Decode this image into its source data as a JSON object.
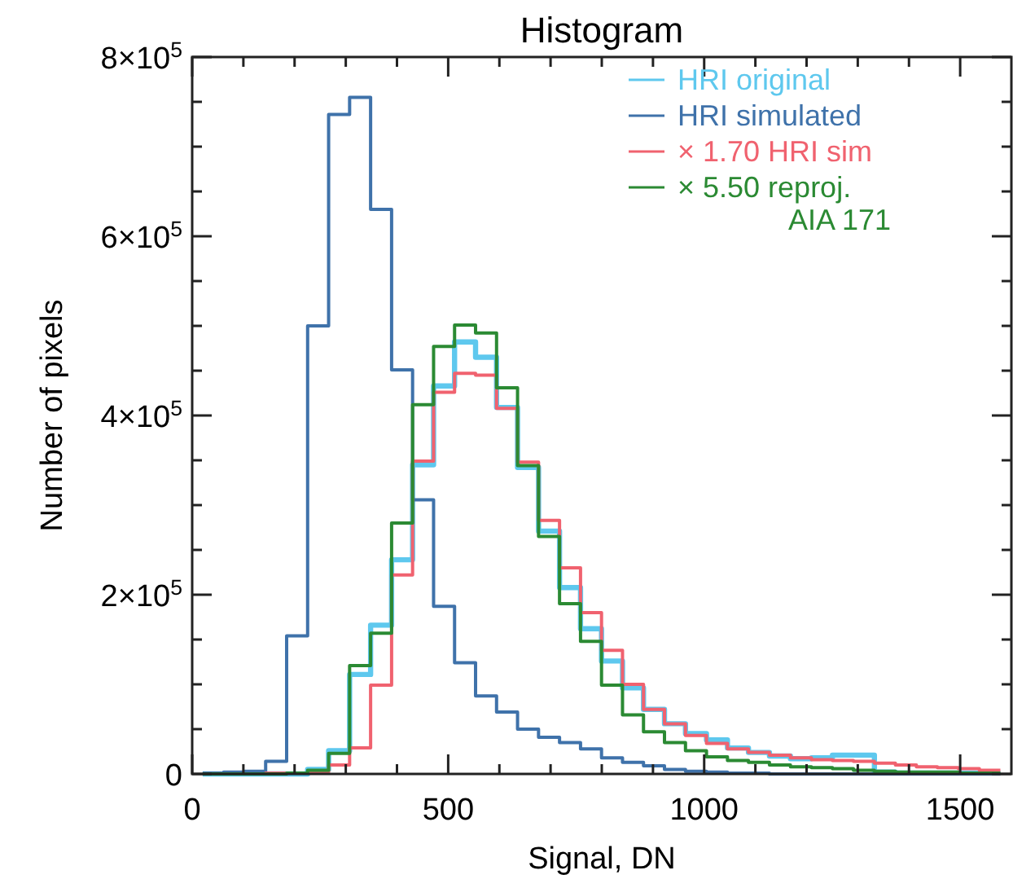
{
  "chart_data": {
    "type": "histogram",
    "title": "Histogram",
    "xlabel": "Signal, DN",
    "ylabel": "Number of pixels",
    "bins": [
      20.5,
      61.5,
      102.5,
      143.5,
      184.5,
      225.5,
      266.5,
      307.5,
      348.5,
      389.5,
      430.5,
      471.5,
      512.5,
      553.5,
      594.5,
      635.5,
      676.5,
      717.5,
      758.5,
      799.5,
      840.5,
      881.5,
      922.5,
      963.5,
      1004.5,
      1045.5,
      1086.5,
      1127.5,
      1168.5,
      1209.5,
      1250.5,
      1291.5,
      1332.5,
      1373.5,
      1414.5,
      1455.5,
      1496.5,
      1537.5,
      1578.5
    ],
    "series": [
      {
        "name": "HRI original",
        "color": "#5ec8ee",
        "values": [
          0,
          0,
          0,
          0,
          0,
          5000,
          26000,
          111000,
          166000,
          239000,
          345000,
          433000,
          482000,
          465000,
          409000,
          342000,
          271000,
          208000,
          162000,
          126000,
          96000,
          72000,
          56000,
          45000,
          38000,
          29000,
          24000,
          20000,
          17000,
          18000,
          21000,
          21000,
          2000,
          1000,
          1000,
          1000,
          1000,
          1000
        ]
      },
      {
        "name": "HRI simulated",
        "color": "#3f72aa",
        "values": [
          1000,
          2000,
          3000,
          14000,
          154000,
          500000,
          736000,
          755000,
          630000,
          451000,
          306000,
          187000,
          124000,
          87000,
          69000,
          50000,
          41000,
          35000,
          28000,
          18000,
          13000,
          9000,
          5000,
          3000,
          2000,
          1000,
          1000,
          0,
          0,
          0,
          0,
          0,
          0,
          0,
          0,
          0,
          0,
          0
        ]
      },
      {
        "name": "× 1.70 HRI sim",
        "color": "#f0626f",
        "values": [
          0,
          0,
          0,
          1000,
          1000,
          2000,
          10000,
          29000,
          99000,
          222000,
          349000,
          426000,
          447000,
          445000,
          408000,
          348000,
          283000,
          230000,
          180000,
          138000,
          100000,
          72000,
          56000,
          43000,
          34000,
          28000,
          24000,
          21000,
          18000,
          16000,
          15000,
          14000,
          12000,
          10000,
          8000,
          7000,
          6000,
          4000
        ]
      },
      {
        "name": "× 5.50 reproj.\nAIA 171",
        "color": "#2b8a33",
        "values": [
          0,
          0,
          0,
          0,
          1000,
          4000,
          23000,
          121000,
          157000,
          280000,
          412000,
          477000,
          501000,
          492000,
          431000,
          344000,
          265000,
          190000,
          148000,
          99000,
          66000,
          47000,
          35000,
          26000,
          19000,
          15000,
          13000,
          10000,
          8000,
          7000,
          6000,
          4000,
          3000,
          2000,
          2000,
          2000,
          1000,
          1000
        ]
      }
    ],
    "xlim": [
      0,
      1600
    ],
    "xticks": [
      0,
      500,
      1000,
      1500,
      {
        "value": 100,
        "label": null
      },
      {
        "value": 200,
        "label": null
      },
      {
        "value": 300,
        "label": null
      },
      {
        "value": 400,
        "label": null
      },
      {
        "value": 600,
        "label": null
      },
      {
        "value": 700,
        "label": null
      },
      {
        "value": 800,
        "label": null
      },
      {
        "value": 900,
        "label": null
      },
      {
        "value": 1100,
        "label": null
      },
      {
        "value": 1200,
        "label": null
      },
      {
        "value": 1300,
        "label": null
      },
      {
        "value": 1400,
        "label": null
      }
    ],
    "ylim": [
      0,
      800000
    ],
    "yticks": [
      0,
      {
        "value": 200000,
        "label": "2×10$^{5}$"
      },
      {
        "value": 400000,
        "label": "4×10$^{5}$"
      },
      {
        "value": 600000,
        "label": "6×10$^{5}$"
      },
      {
        "value": 800000,
        "label": "8×10$^{5}$"
      },
      {
        "value": 50000,
        "label": null
      },
      {
        "value": 100000,
        "label": null
      },
      {
        "value": 150000,
        "label": null
      },
      {
        "value": 250000,
        "label": null
      },
      {
        "value": 300000,
        "label": null
      },
      {
        "value": 350000,
        "label": null
      },
      {
        "value": 450000,
        "label": null
      },
      {
        "value": 500000,
        "label": null
      },
      {
        "value": 550000,
        "label": null
      },
      {
        "value": 650000,
        "label": null
      },
      {
        "value": 700000,
        "label": null
      },
      {
        "value": 750000,
        "label": null
      }
    ],
    "grid": false,
    "legend": "top right"
  }
}
